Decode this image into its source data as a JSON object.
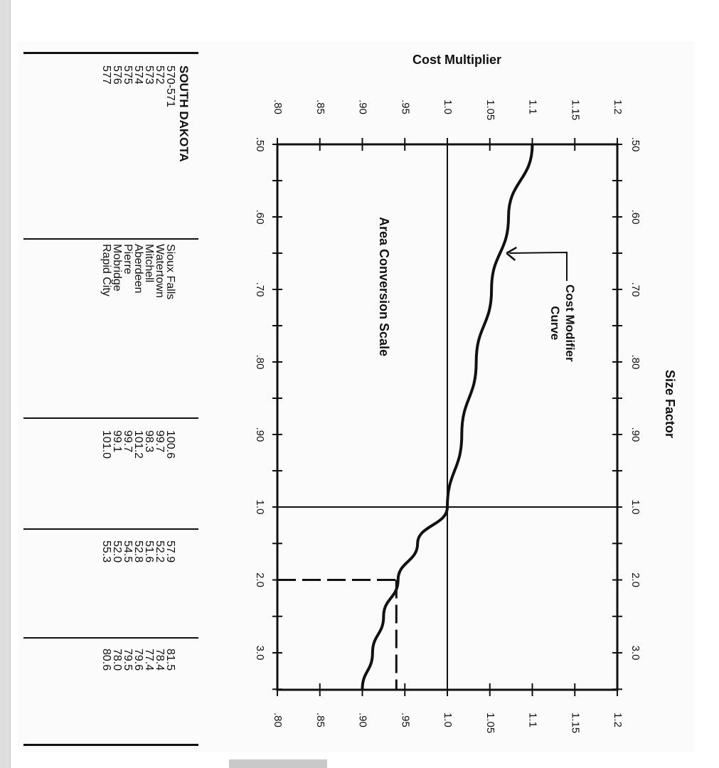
{
  "state": {
    "name": "SOUTH DAKOTA",
    "rows": [
      {
        "zip": "570-571",
        "city": "Sioux Falls",
        "mat": "100.6",
        "inst": "57.9",
        "total": "81.5"
      },
      {
        "zip": "572",
        "city": "Watertown",
        "mat": "99.7",
        "inst": "52.2",
        "total": "78.4"
      },
      {
        "zip": "573",
        "city": "Mitchell",
        "mat": "98.3",
        "inst": "51.6",
        "total": "77.4"
      },
      {
        "zip": "574",
        "city": "Aberdeen",
        "mat": "101.2",
        "inst": "52.8",
        "total": "79.6"
      },
      {
        "zip": "575",
        "city": "Pierre",
        "mat": "99.7",
        "inst": "54.5",
        "total": "79.5"
      },
      {
        "zip": "576",
        "city": "Mobridge",
        "mat": "99.1",
        "inst": "52.0",
        "total": "78.0"
      },
      {
        "zip": "577",
        "city": "Rapid City",
        "mat": "101.0",
        "inst": "55.3",
        "total": "80.6"
      }
    ]
  },
  "chart_data": {
    "type": "line",
    "title": "",
    "y_axis_title": "Cost Multiplier",
    "x_axis_title": "Size Factor",
    "y_tick_labels": [
      ".80",
      ".85",
      ".90",
      ".95",
      "1.0",
      "1.05",
      "1.1",
      "1.15",
      "1.2"
    ],
    "y_ticks": [
      0.8,
      0.85,
      0.9,
      0.95,
      1.0,
      1.05,
      1.1,
      1.15,
      1.2
    ],
    "ylim": [
      0.8,
      1.2
    ],
    "x_tick_labels": [
      ".50",
      ".60",
      ".70",
      ".80",
      ".90",
      "1.0",
      "2.0",
      "3.0"
    ],
    "x_ticks": [
      0.5,
      0.6,
      0.7,
      0.8,
      0.9,
      1.0,
      2.0,
      3.0
    ],
    "x_scale": "two-segment: linear 0.5–1.0, then linear 1.0–3.5 at a compressed spacing",
    "series": [
      {
        "x": [
          0.5,
          0.6,
          0.7,
          0.8,
          0.9,
          1.0,
          1.5,
          2.0,
          2.5,
          3.0,
          3.5
        ],
        "y": [
          1.1,
          1.072,
          1.052,
          1.034,
          1.017,
          1.0,
          0.965,
          0.942,
          0.925,
          0.912,
          0.9
        ]
      }
    ],
    "reference_lines": [
      {
        "orientation": "horizontal",
        "y": 1.0,
        "style": "solid"
      },
      {
        "orientation": "vertical",
        "x": 1.0,
        "style": "solid"
      },
      {
        "orientation": "vertical",
        "x": 2.0,
        "y_range": [
          0.8,
          0.94
        ],
        "style": "dashed"
      },
      {
        "orientation": "horizontal",
        "y": 0.94,
        "x_range": [
          2.0,
          3.5
        ],
        "style": "dashed"
      }
    ],
    "annotations": [
      {
        "text_lines": [
          "Cost Modifier",
          "Curve"
        ],
        "points_to": {
          "x": 0.65,
          "y": 1.063
        }
      },
      {
        "text": "Area Conversion Scale"
      }
    ],
    "grid": false,
    "legend": "none",
    "orientation": "rotated 90 degrees clockwise"
  }
}
